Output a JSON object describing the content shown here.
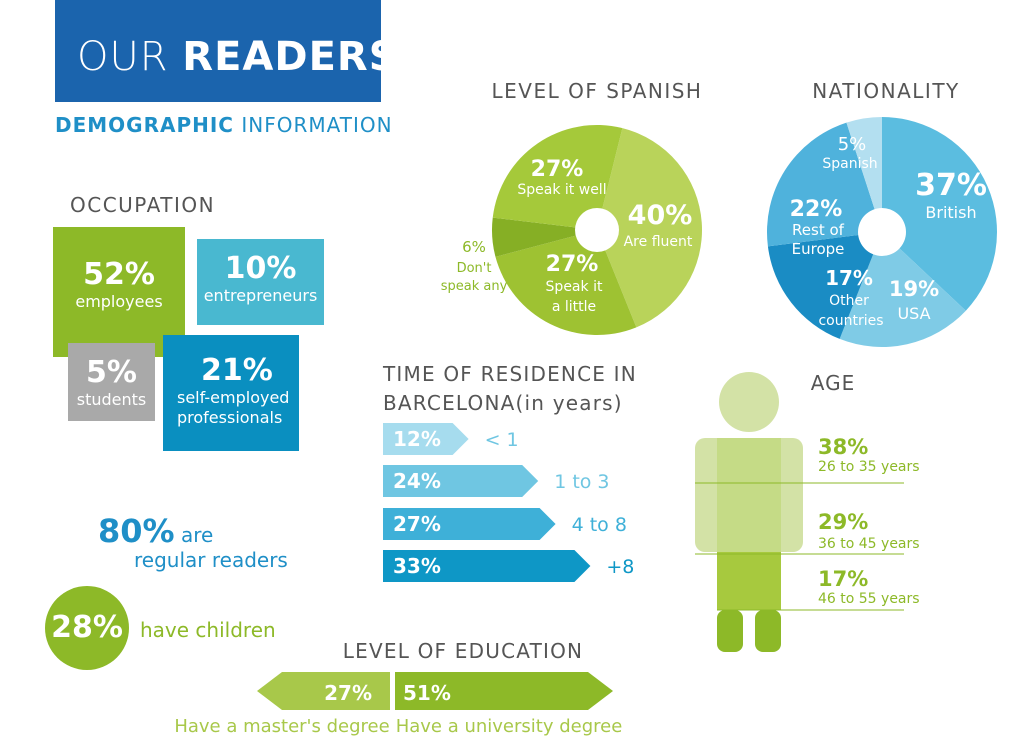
{
  "header": {
    "title_light": "OUR",
    "title_bold": "READERS",
    "subtitle_bold": "DEMOGRAPHIC",
    "subtitle_light": "INFORMATION"
  },
  "occupation": {
    "title": "OCCUPATION",
    "items": [
      {
        "pct": "52%",
        "label": "employees",
        "color": "#8db928"
      },
      {
        "pct": "10%",
        "label": "entrepreneurs",
        "color": "#49b8d0"
      },
      {
        "pct": "5%",
        "label": "students",
        "color": "#a9a9a9"
      },
      {
        "pct": "21%",
        "label_line1": "self-employed",
        "label_line2": "professionals",
        "color": "#0a8fc0"
      }
    ]
  },
  "readers": {
    "pct": "80%",
    "are": "are",
    "rest": "regular readers"
  },
  "children": {
    "pct": "28%",
    "label": "have children"
  },
  "colors": {
    "green": "#8db928",
    "lightgreen": "#c3d972",
    "blue": "#1b64ad",
    "cyan": "#49b8d0"
  },
  "chart_data": [
    {
      "type": "pie",
      "title": "LEVEL OF SPANISH",
      "slices": [
        {
          "value": 40,
          "pct": "40%",
          "label": "Are fluent",
          "color": "#b9d35a"
        },
        {
          "value": 27,
          "pct": "27%",
          "label_lines": [
            "Speak it",
            "a little"
          ],
          "color": "#9ec232"
        },
        {
          "value": 6,
          "pct": "6%",
          "label_lines": [
            "Don't",
            "speak any"
          ],
          "color": "#86af25"
        },
        {
          "value": 27,
          "pct": "27%",
          "label": "Speak it well",
          "color": "#a5c93a"
        }
      ]
    },
    {
      "type": "pie",
      "title": "NATIONALITY",
      "slices": [
        {
          "value": 37,
          "pct": "37%",
          "label": "British",
          "color": "#5bbde0"
        },
        {
          "value": 19,
          "pct": "19%",
          "label": "USA",
          "color": "#7fcbe6"
        },
        {
          "value": 17,
          "pct": "17%",
          "label_lines": [
            "Other",
            "countries"
          ],
          "color": "#1a8cc4"
        },
        {
          "value": 22,
          "pct": "22%",
          "label_lines": [
            "Rest of",
            "Europe"
          ],
          "color": "#4fb2dc"
        },
        {
          "value": 5,
          "pct": "5%",
          "label": "Spanish",
          "color": "#b3dff0"
        }
      ]
    },
    {
      "type": "bar",
      "title_line1": "TIME OF RESIDENCE IN",
      "title_line2": "BARCELONA(in years)",
      "categories": [
        "< 1",
        "1 to 3",
        "4 to 8",
        "+8"
      ],
      "values": [
        12,
        24,
        27,
        33
      ],
      "labels": [
        "12%",
        "24%",
        "27%",
        "33%"
      ],
      "colors": [
        "#a6dcee",
        "#6fc6e2",
        "#3eb0d8",
        "#0e97c6"
      ]
    },
    {
      "type": "bar",
      "title": "AGE",
      "categories": [
        "26 to 35 years",
        "36 to 45 years",
        "46 to 55 years"
      ],
      "values": [
        38,
        29,
        17
      ],
      "labels": [
        "38%",
        "29%",
        "17%"
      ]
    },
    {
      "type": "bar",
      "title": "LEVEL OF EDUCATION",
      "categories": [
        "Have a master's degree",
        "Have a university degree"
      ],
      "values": [
        27,
        51
      ],
      "labels": [
        "27%",
        "51%"
      ],
      "colors": [
        "#a8c84a",
        "#8db928"
      ]
    }
  ]
}
